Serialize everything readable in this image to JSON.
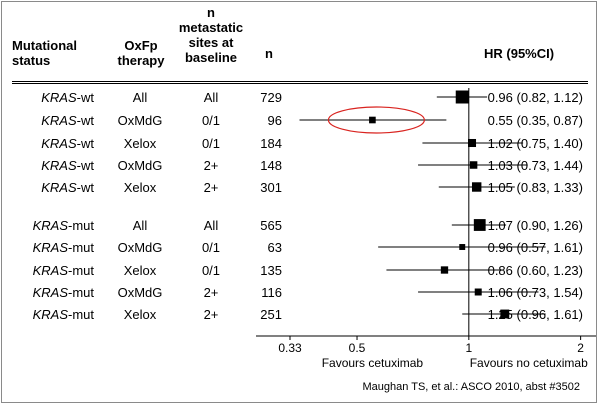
{
  "headers": {
    "mut_status": "Mutational status",
    "oxfp": "OxFp therapy",
    "n_sites": "n metastatic sites at baseline",
    "n": "n",
    "hr": "HR (95%CI)"
  },
  "rows": [
    {
      "gene": "KRAS",
      "suffix": "-wt",
      "therapy": "All",
      "sites": "All",
      "n": "729",
      "hr_text": "0.96 (0.82, 1.12)"
    },
    {
      "gene": "KRAS",
      "suffix": "-wt",
      "therapy": "OxMdG",
      "sites": "0/1",
      "n": "96",
      "hr_text": "0.55 (0.35, 0.87)"
    },
    {
      "gene": "KRAS",
      "suffix": "-wt",
      "therapy": "Xelox",
      "sites": "0/1",
      "n": "184",
      "hr_text": "1.02 (0.75, 1.40)"
    },
    {
      "gene": "KRAS",
      "suffix": "-wt",
      "therapy": "OxMdG",
      "sites": "2+",
      "n": "148",
      "hr_text": "1.03 (0.73, 1.44)"
    },
    {
      "gene": "KRAS",
      "suffix": "-wt",
      "therapy": "Xelox",
      "sites": "2+",
      "n": "301",
      "hr_text": "1.05 (0.83, 1.33)"
    },
    {
      "gene": "KRAS",
      "suffix": "-mut",
      "therapy": "All",
      "sites": "All",
      "n": "565",
      "hr_text": "1.07 (0.90, 1.26)"
    },
    {
      "gene": "KRAS",
      "suffix": "-mut",
      "therapy": "OxMdG",
      "sites": "0/1",
      "n": "63",
      "hr_text": "0.96 (0.57, 1.61)"
    },
    {
      "gene": "KRAS",
      "suffix": "-mut",
      "therapy": "Xelox",
      "sites": "0/1",
      "n": "135",
      "hr_text": "0.86 (0.60, 1.23)"
    },
    {
      "gene": "KRAS",
      "suffix": "-mut",
      "therapy": "OxMdG",
      "sites": "2+",
      "n": "116",
      "hr_text": "1.06 (0.73, 1.54)"
    },
    {
      "gene": "KRAS",
      "suffix": "-mut",
      "therapy": "Xelox",
      "sites": "2+",
      "n": "251",
      "hr_text": "1.25 (0.96, 1.61)"
    }
  ],
  "chart_data": {
    "type": "forest",
    "x_scale": "log",
    "xlim": [
      0.33,
      2.2
    ],
    "reference_line": 1,
    "x_ticks": [
      {
        "value": 0.33,
        "label": "0.33"
      },
      {
        "value": 0.5,
        "label": "0.5"
      },
      {
        "value": 1,
        "label": "1"
      },
      {
        "value": 2,
        "label": "2"
      }
    ],
    "left_label": "Favours cetuximab",
    "right_label": "Favours no cetuximab",
    "points": [
      {
        "hr": 0.96,
        "lo": 0.82,
        "hi": 1.12,
        "n": 729
      },
      {
        "hr": 0.55,
        "lo": 0.35,
        "hi": 0.87,
        "n": 96,
        "highlighted": true
      },
      {
        "hr": 1.02,
        "lo": 0.75,
        "hi": 1.4,
        "n": 184
      },
      {
        "hr": 1.03,
        "lo": 0.73,
        "hi": 1.44,
        "n": 148
      },
      {
        "hr": 1.05,
        "lo": 0.83,
        "hi": 1.33,
        "n": 301
      },
      {
        "hr": 1.07,
        "lo": 0.9,
        "hi": 1.26,
        "n": 565
      },
      {
        "hr": 0.96,
        "lo": 0.57,
        "hi": 1.61,
        "n": 63
      },
      {
        "hr": 0.86,
        "lo": 0.6,
        "hi": 1.23,
        "n": 135
      },
      {
        "hr": 1.06,
        "lo": 0.73,
        "hi": 1.54,
        "n": 116
      },
      {
        "hr": 1.25,
        "lo": 0.96,
        "hi": 1.61,
        "n": 251
      }
    ],
    "highlight_color": "#d9231f"
  },
  "source": "Maughan TS, et al.: ASCO 2010, abst #3502"
}
